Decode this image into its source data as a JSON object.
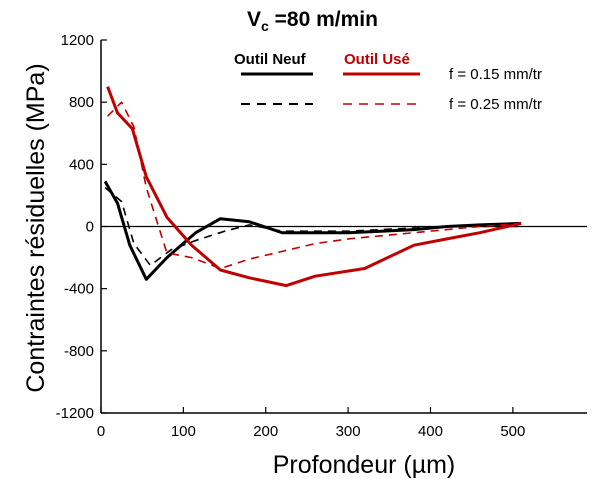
{
  "chart_data": {
    "type": "line",
    "title_main": "V",
    "title_sub": "c",
    "title_rest": " =80 m/min",
    "xlabel": "Profondeur (µm)",
    "ylabel": "Contraintes résiduelles (MPa)",
    "xlim": [
      0,
      590
    ],
    "ylim": [
      -1200,
      1200
    ],
    "xticks": [
      0,
      100,
      200,
      300,
      400,
      500
    ],
    "yticks": [
      -1200,
      -800,
      -400,
      0,
      400,
      800,
      1200
    ],
    "zero_line": true,
    "legend": {
      "tool_new": "Outil Neuf",
      "tool_worn": "Outil Usé",
      "feed_1": "f = 0.15 mm/tr",
      "feed_2": "f = 0.25 mm/tr"
    },
    "colors": {
      "new": "#000000",
      "worn": "#c00000"
    },
    "series": [
      {
        "tool": "new",
        "feed": "0.15",
        "dash": false,
        "x": [
          5,
          20,
          35,
          55,
          80,
          115,
          145,
          180,
          220,
          260,
          300,
          340,
          380,
          420,
          460,
          510
        ],
        "y": [
          290,
          150,
          -120,
          -340,
          -200,
          -40,
          50,
          30,
          -40,
          -40,
          -40,
          -30,
          -20,
          0,
          10,
          20
        ]
      },
      {
        "tool": "new",
        "feed": "0.25",
        "dash": true,
        "x": [
          5,
          25,
          40,
          60,
          85,
          115,
          150,
          180,
          220,
          260,
          300,
          340,
          380,
          420,
          460,
          510
        ],
        "y": [
          250,
          160,
          -110,
          -250,
          -150,
          -90,
          -30,
          10,
          -30,
          -30,
          -30,
          -20,
          -10,
          0,
          0,
          0
        ]
      },
      {
        "tool": "worn",
        "feed": "0.15",
        "dash": false,
        "x": [
          8,
          20,
          38,
          55,
          80,
          110,
          145,
          180,
          225,
          260,
          320,
          380,
          420,
          460,
          510
        ],
        "y": [
          900,
          730,
          630,
          320,
          60,
          -120,
          -280,
          -330,
          -380,
          -320,
          -270,
          -120,
          -80,
          -40,
          20
        ]
      },
      {
        "tool": "worn",
        "feed": "0.25",
        "dash": true,
        "x": [
          8,
          25,
          40,
          55,
          80,
          110,
          145,
          180,
          220,
          260,
          300,
          340,
          380,
          420,
          460,
          510
        ],
        "y": [
          710,
          800,
          640,
          250,
          -170,
          -200,
          -270,
          -210,
          -160,
          -110,
          -80,
          -60,
          -40,
          -20,
          0,
          20
        ]
      }
    ]
  }
}
